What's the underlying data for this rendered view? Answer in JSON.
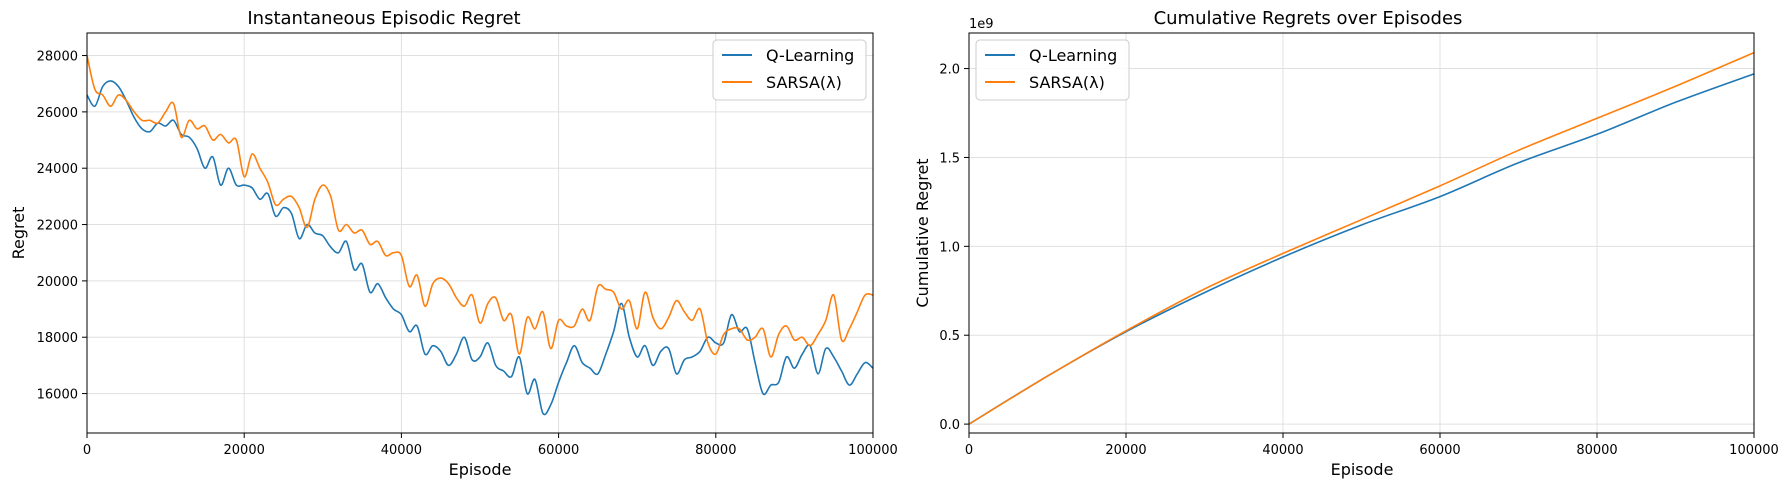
{
  "colors": {
    "q_learning": "#1f77b4",
    "sarsa": "#ff7f0e",
    "grid": "#e0e0e0"
  },
  "chart_data": [
    {
      "type": "line",
      "title": "Instantaneous Episodic Regret",
      "xlabel": "Episode",
      "ylabel": "Regret",
      "xlim": [
        0,
        100000
      ],
      "ylim": [
        14600,
        28800
      ],
      "xticks": [
        0,
        20000,
        40000,
        60000,
        80000,
        100000
      ],
      "yticks": [
        16000,
        18000,
        20000,
        22000,
        24000,
        26000,
        28000
      ],
      "grid": true,
      "legend_position": "upper right",
      "series": [
        {
          "name": "Q-Learning",
          "color": "#1f77b4",
          "x": [
            0,
            1000,
            2000,
            3000,
            4000,
            5000,
            6000,
            7000,
            8000,
            9000,
            10000,
            11000,
            12000,
            13000,
            14000,
            15000,
            16000,
            17000,
            18000,
            19000,
            20000,
            21000,
            22000,
            23000,
            24000,
            25000,
            26000,
            27000,
            28000,
            29000,
            30000,
            31000,
            32000,
            33000,
            34000,
            35000,
            36000,
            37000,
            38000,
            39000,
            40000,
            41000,
            42000,
            43000,
            44000,
            45000,
            46000,
            47000,
            48000,
            49000,
            50000,
            51000,
            52000,
            53000,
            54000,
            55000,
            56000,
            57000,
            58000,
            59000,
            60000,
            61000,
            62000,
            63000,
            64000,
            65000,
            66000,
            67000,
            68000,
            69000,
            70000,
            71000,
            72000,
            73000,
            74000,
            75000,
            76000,
            77000,
            78000,
            79000,
            80000,
            81000,
            82000,
            83000,
            84000,
            85000,
            86000,
            87000,
            88000,
            89000,
            90000,
            91000,
            92000,
            93000,
            94000,
            95000,
            96000,
            97000,
            98000,
            99000,
            100000
          ],
          "y": [
            26600,
            26200,
            26900,
            27100,
            26900,
            26400,
            25800,
            25400,
            25300,
            25600,
            25500,
            25700,
            25200,
            25100,
            24700,
            24000,
            24400,
            23400,
            24000,
            23400,
            23400,
            23300,
            22900,
            23100,
            22300,
            22600,
            22400,
            21500,
            22000,
            21700,
            21600,
            21200,
            21000,
            21400,
            20400,
            20600,
            19600,
            19900,
            19400,
            19000,
            18800,
            18200,
            18400,
            17400,
            17700,
            17500,
            17000,
            17400,
            18000,
            17200,
            17300,
            17800,
            17000,
            16800,
            16600,
            17300,
            16000,
            16500,
            15300,
            15600,
            16400,
            17100,
            17700,
            17100,
            16900,
            16700,
            17400,
            18200,
            19200,
            18000,
            17300,
            17700,
            17000,
            17500,
            17600,
            16700,
            17200,
            17300,
            17500,
            18000,
            17800,
            17800,
            18800,
            18200,
            18300,
            17100,
            16000,
            16300,
            16400,
            17300,
            16900,
            17400,
            17700,
            16700,
            17600,
            17300,
            16800,
            16300,
            16700,
            17100,
            16900
          ]
        },
        {
          "name": "SARSA(λ)",
          "color": "#ff7f0e",
          "x": [
            0,
            1000,
            2000,
            3000,
            4000,
            5000,
            6000,
            7000,
            8000,
            9000,
            10000,
            11000,
            12000,
            13000,
            14000,
            15000,
            16000,
            17000,
            18000,
            19000,
            20000,
            21000,
            22000,
            23000,
            24000,
            25000,
            26000,
            27000,
            28000,
            29000,
            30000,
            31000,
            32000,
            33000,
            34000,
            35000,
            36000,
            37000,
            38000,
            39000,
            40000,
            41000,
            42000,
            43000,
            44000,
            45000,
            46000,
            47000,
            48000,
            49000,
            50000,
            51000,
            52000,
            53000,
            54000,
            55000,
            56000,
            57000,
            58000,
            59000,
            60000,
            61000,
            62000,
            63000,
            64000,
            65000,
            66000,
            67000,
            68000,
            69000,
            70000,
            71000,
            72000,
            73000,
            74000,
            75000,
            76000,
            77000,
            78000,
            79000,
            80000,
            81000,
            82000,
            83000,
            84000,
            85000,
            86000,
            87000,
            88000,
            89000,
            90000,
            91000,
            92000,
            93000,
            94000,
            95000,
            96000,
            97000,
            98000,
            99000,
            100000
          ],
          "y": [
            28000,
            26800,
            26600,
            26200,
            26600,
            26400,
            26000,
            25700,
            25700,
            25600,
            26000,
            26300,
            25100,
            25700,
            25400,
            25500,
            25000,
            25200,
            24900,
            25000,
            23700,
            24500,
            24000,
            23500,
            22700,
            22900,
            23000,
            22600,
            21900,
            22900,
            23400,
            23000,
            21800,
            22000,
            21700,
            21800,
            21300,
            21400,
            20900,
            21000,
            20900,
            19800,
            20200,
            19100,
            19900,
            20100,
            19900,
            19400,
            19100,
            19500,
            18500,
            19200,
            19400,
            18600,
            18800,
            17400,
            18700,
            18300,
            18900,
            17600,
            18600,
            18400,
            18400,
            19000,
            18600,
            19800,
            19700,
            19600,
            19000,
            19300,
            18300,
            19600,
            18700,
            18300,
            18700,
            19300,
            18900,
            18600,
            19000,
            17800,
            17400,
            18100,
            18300,
            18300,
            17900,
            18000,
            18300,
            17300,
            18100,
            18400,
            17900,
            18000,
            17700,
            18100,
            18600,
            19500,
            17900,
            18300,
            18900,
            19500,
            19500
          ]
        }
      ]
    },
    {
      "type": "line",
      "title": "Cumulative Regrets over Episodes",
      "xlabel": "Episode",
      "ylabel": "Cumulative Regret",
      "offset_label": "1e9",
      "xlim": [
        0,
        100000
      ],
      "ylim": [
        -0.05,
        2.2
      ],
      "xticks": [
        0,
        20000,
        40000,
        60000,
        80000,
        100000
      ],
      "yticks": [
        0.0,
        0.5,
        1.0,
        1.5,
        2.0
      ],
      "grid": true,
      "legend_position": "upper left",
      "series": [
        {
          "name": "Q-Learning",
          "color": "#1f77b4",
          "x": [
            0,
            10000,
            20000,
            30000,
            40000,
            50000,
            60000,
            70000,
            80000,
            90000,
            100000
          ],
          "y": [
            0.0,
            0.27,
            0.52,
            0.74,
            0.94,
            1.12,
            1.28,
            1.47,
            1.63,
            1.81,
            1.97
          ]
        },
        {
          "name": "SARSA(λ)",
          "color": "#ff7f0e",
          "x": [
            0,
            10000,
            20000,
            30000,
            40000,
            50000,
            60000,
            70000,
            80000,
            90000,
            100000
          ],
          "y": [
            0.0,
            0.27,
            0.525,
            0.76,
            0.96,
            1.15,
            1.34,
            1.54,
            1.72,
            1.9,
            2.09
          ]
        }
      ]
    }
  ]
}
